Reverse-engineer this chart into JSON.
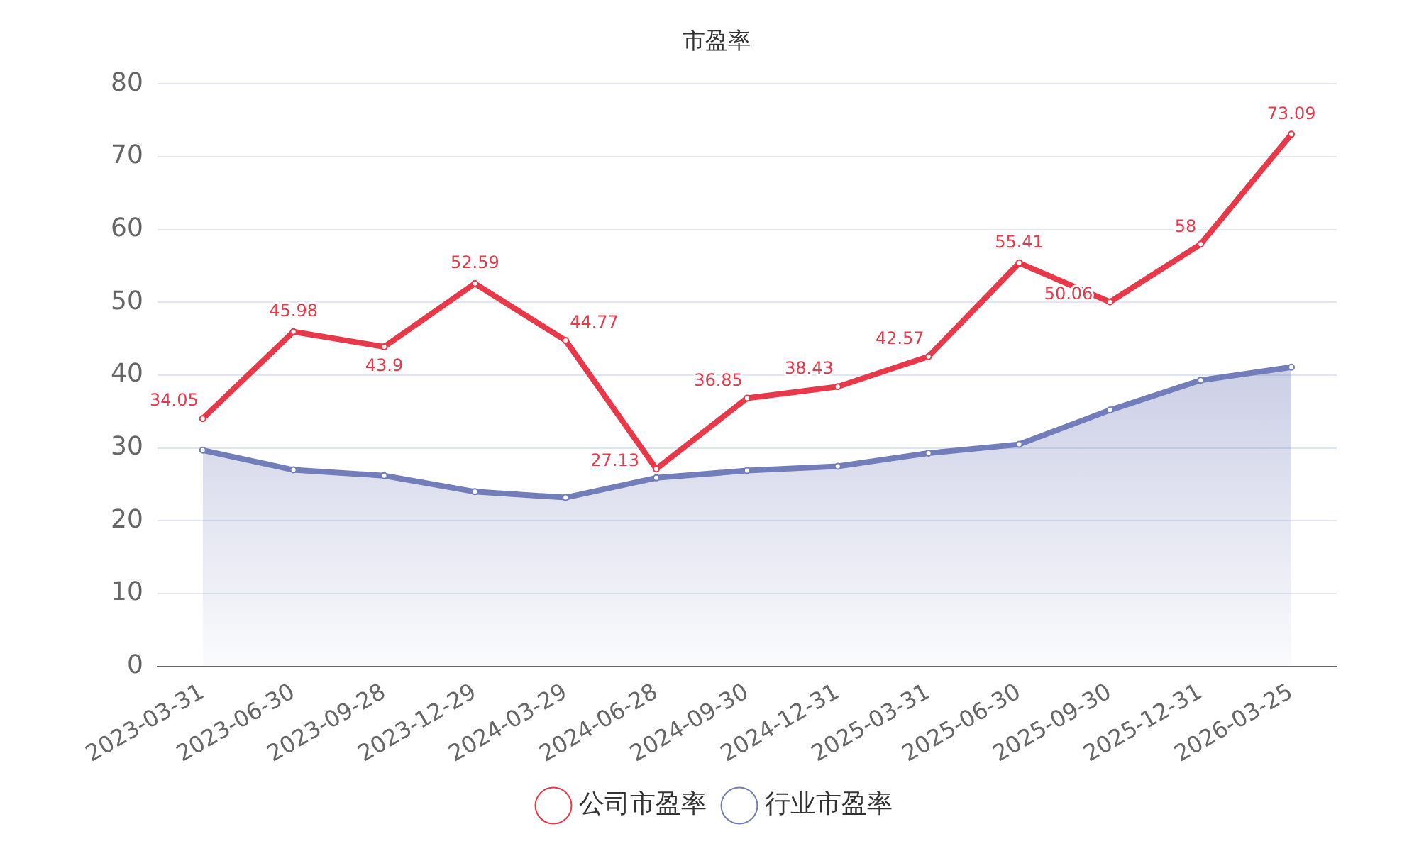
{
  "chart_data": {
    "type": "line",
    "title": "市盈率",
    "categories": [
      "2023-03-31",
      "2023-06-30",
      "2023-09-28",
      "2023-12-29",
      "2024-03-29",
      "2024-06-28",
      "2024-09-30",
      "2024-12-31",
      "2025-03-31",
      "2025-06-30",
      "2025-09-30",
      "2025-12-31",
      "2026-03-25"
    ],
    "series": [
      {
        "name": "公司市盈率",
        "color": "#e8394a",
        "values": [
          34.05,
          45.98,
          43.9,
          52.59,
          44.77,
          27.13,
          36.85,
          38.43,
          42.57,
          55.41,
          50.06,
          58,
          73.09
        ],
        "value_labels": [
          "34.05",
          "45.98",
          "43.9",
          "52.59",
          "44.77",
          "27.13",
          "36.85",
          "38.43",
          "42.57",
          "55.41",
          "50.06",
          "58",
          "73.09"
        ]
      },
      {
        "name": "行业市盈率",
        "type": "area",
        "color": "#737dba",
        "values": [
          29.7,
          27.0,
          26.2,
          24.0,
          23.2,
          25.9,
          26.9,
          27.5,
          29.3,
          30.5,
          35.2,
          39.3,
          41.1
        ]
      }
    ],
    "ylim": [
      0,
      80
    ],
    "yticks": [
      0,
      10,
      20,
      30,
      40,
      50,
      60,
      70,
      80
    ],
    "grid": "y",
    "legend": "bottom",
    "marker": "circle",
    "line_style": "solid"
  }
}
